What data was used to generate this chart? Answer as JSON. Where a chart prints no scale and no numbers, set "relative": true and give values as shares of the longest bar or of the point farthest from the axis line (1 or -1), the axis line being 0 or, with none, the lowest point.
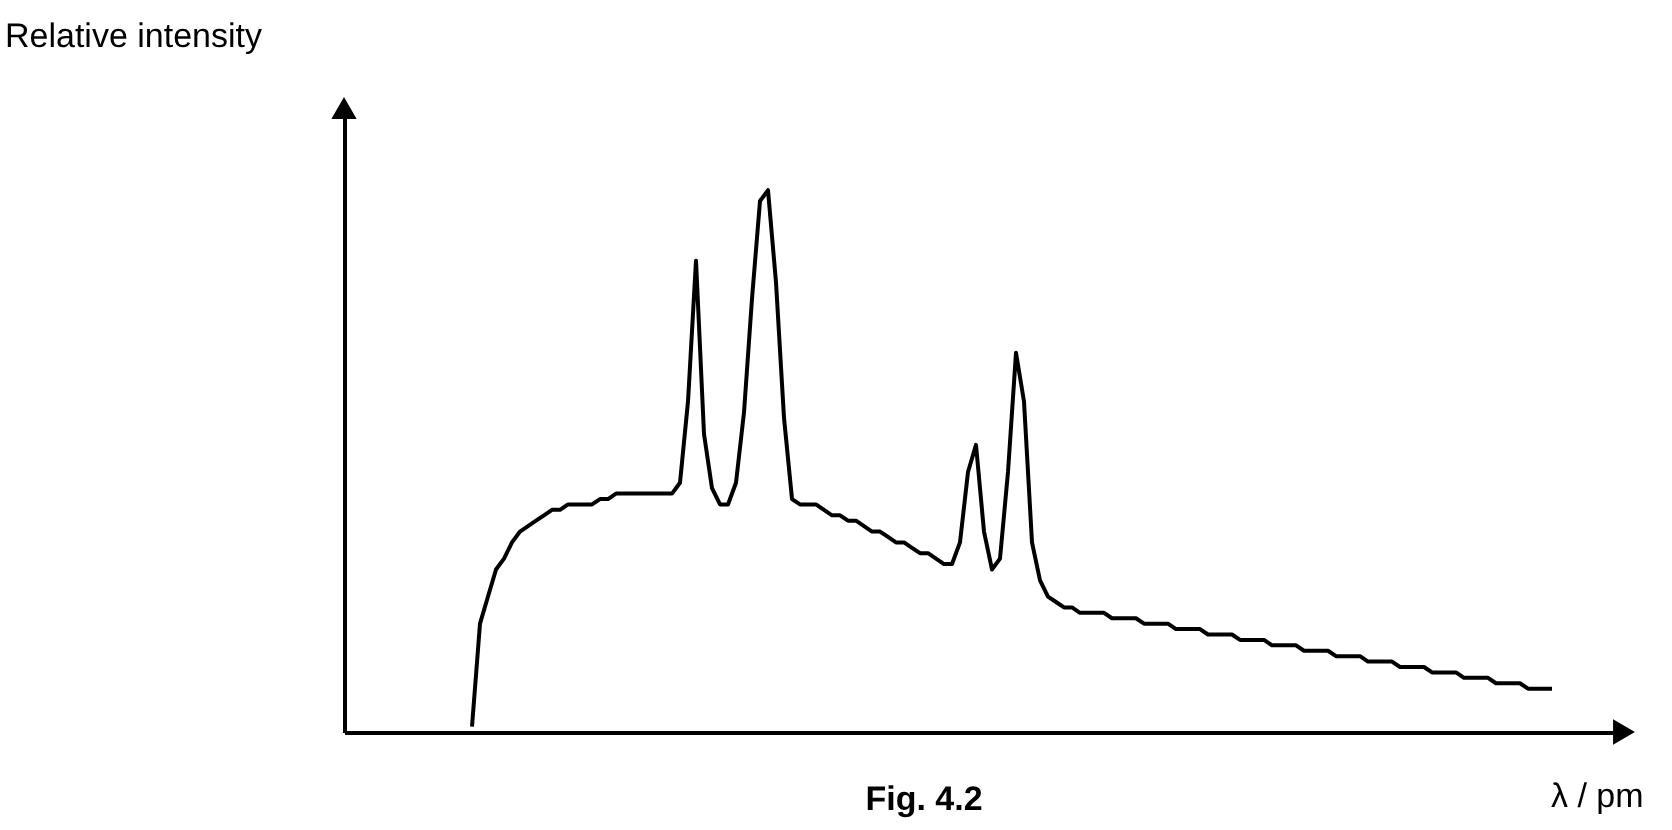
{
  "chart_data": {
    "type": "line",
    "relative": true,
    "xlabel": "λ / pm",
    "ylabel": "Relative intensity",
    "annotations": [
      "Fig. 4.2"
    ],
    "color": "#000000",
    "categories": [
      null,
      null,
      null,
      null,
      null,
      null,
      null,
      null,
      null,
      null,
      null,
      null,
      null,
      null,
      null,
      null,
      null,
      null,
      null,
      null,
      null,
      null,
      null,
      null,
      null,
      null,
      null,
      null,
      null,
      null,
      null,
      null,
      null,
      null,
      null,
      null,
      null,
      null,
      null,
      null,
      null,
      null,
      null,
      null,
      null,
      null,
      null,
      null,
      null,
      null,
      null,
      null,
      null,
      null,
      null,
      null,
      null,
      null,
      null,
      null,
      null,
      null,
      null,
      null,
      null,
      null,
      null,
      null,
      null,
      null,
      null,
      null,
      null,
      null,
      null,
      null,
      null,
      null,
      null,
      null,
      null,
      null,
      null,
      null,
      null,
      null,
      null,
      null,
      null,
      null,
      null,
      null,
      null,
      null,
      null,
      null,
      null,
      null,
      null,
      null,
      null,
      null,
      null,
      null,
      null,
      null,
      null,
      null,
      null,
      null,
      null,
      null,
      null,
      null,
      null,
      null,
      null,
      null,
      null,
      null,
      null,
      null,
      null,
      null,
      null,
      null,
      null,
      null,
      null,
      null,
      null,
      null,
      null,
      null,
      null,
      null,
      null,
      null,
      null,
      null,
      null,
      null,
      null,
      null,
      null,
      null,
      null,
      null,
      null,
      null,
      null,
      null
    ],
    "values": [
      null,
      null,
      null,
      null,
      null,
      null,
      null,
      null,
      null,
      null,
      null,
      null,
      null,
      null,
      null,
      null,
      0.01,
      0.2,
      0.25,
      0.3,
      0.32,
      0.35,
      0.37,
      0.38,
      0.39,
      0.4,
      0.41,
      0.41,
      0.42,
      0.42,
      0.42,
      0.42,
      0.43,
      0.43,
      0.44,
      0.44,
      0.44,
      0.44,
      0.44,
      0.44,
      0.44,
      0.44,
      0.46,
      0.61,
      0.87,
      0.55,
      0.45,
      0.42,
      0.42,
      0.46,
      0.59,
      0.8,
      0.98,
      1.0,
      0.83,
      0.58,
      0.43,
      0.42,
      0.42,
      0.42,
      0.41,
      0.4,
      0.4,
      0.39,
      0.39,
      0.38,
      0.37,
      0.37,
      0.36,
      0.35,
      0.35,
      0.34,
      0.33,
      0.33,
      0.32,
      0.31,
      0.31,
      0.35,
      0.48,
      0.53,
      0.37,
      0.3,
      0.32,
      0.48,
      0.7,
      0.61,
      0.35,
      0.28,
      0.25,
      0.24,
      0.23,
      0.23,
      0.22,
      0.22,
      0.22,
      0.22,
      0.21,
      0.21,
      0.21,
      0.21,
      0.2,
      0.2,
      0.2,
      0.2,
      0.19,
      0.19,
      0.19,
      0.19,
      0.18,
      0.18,
      0.18,
      0.18,
      0.17,
      0.17,
      0.17,
      0.17,
      0.16,
      0.16,
      0.16,
      0.16,
      0.15,
      0.15,
      0.15,
      0.15,
      0.14,
      0.14,
      0.14,
      0.14,
      0.13,
      0.13,
      0.13,
      0.13,
      0.12,
      0.12,
      0.12,
      0.12,
      0.11,
      0.11,
      0.11,
      0.11,
      0.1,
      0.1,
      0.1,
      0.1,
      0.09,
      0.09,
      0.09,
      0.09,
      0.08,
      0.08,
      0.08,
      0.08
    ]
  }
}
